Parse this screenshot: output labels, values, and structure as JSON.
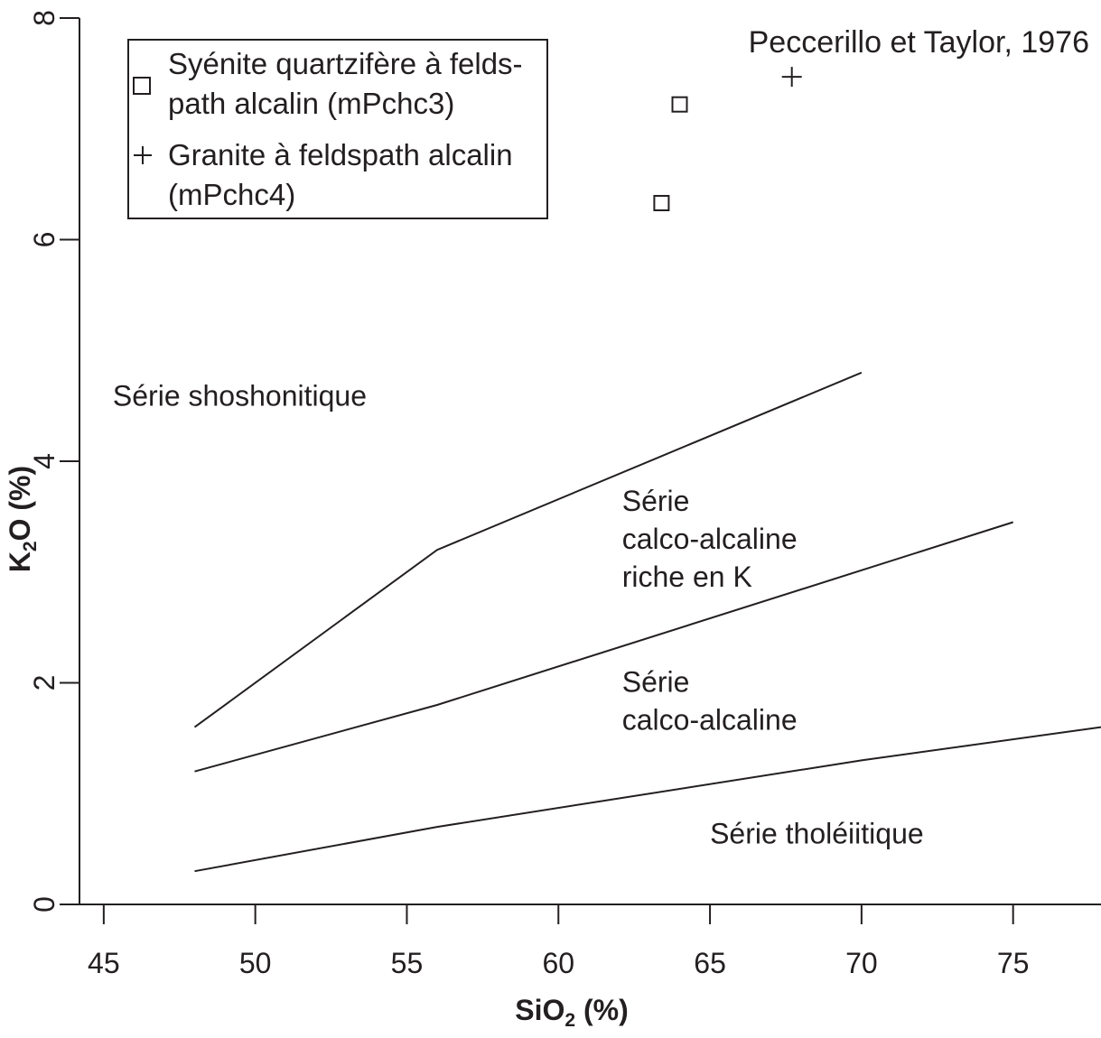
{
  "chart_data": {
    "type": "scatter",
    "xlabel_main": "SiO",
    "xlabel_sub": "2",
    "xlabel_tail": " (%)",
    "ylabel_main": "K",
    "ylabel_sub": "2",
    "ylabel_tail": "O (%)",
    "xlim": [
      44.2,
      77.9
    ],
    "ylim": [
      0,
      8
    ],
    "x_ticks": [
      45,
      50,
      55,
      60,
      65,
      70,
      75
    ],
    "y_ticks": [
      0,
      2,
      4,
      6,
      8
    ],
    "source": "Peccerillo et Taylor, 1976",
    "legend": {
      "position": "top-left",
      "entries": [
        {
          "symbol": "square",
          "lines": [
            "Syénite quartzifère à felds-",
            "path alcalin (mPchc3)"
          ]
        },
        {
          "symbol": "plus",
          "lines": [
            "Granite à feldspath alcalin",
            "(mPchc4)"
          ]
        }
      ]
    },
    "series": [
      {
        "name": "Syénite quartzifère à feldspath alcalin (mPchc3)",
        "marker": "square",
        "points": [
          [
            64.0,
            7.22
          ],
          [
            63.4,
            6.33
          ]
        ]
      },
      {
        "name": "Granite à feldspath alcalin (mPchc4)",
        "marker": "plus",
        "points": [
          [
            67.7,
            7.47
          ]
        ]
      }
    ],
    "boundaries": [
      {
        "points": [
          [
            48,
            1.6
          ],
          [
            56,
            3.2
          ],
          [
            70,
            4.8
          ]
        ]
      },
      {
        "points": [
          [
            48,
            1.2
          ],
          [
            56,
            1.8
          ],
          [
            75,
            3.45
          ]
        ]
      },
      {
        "points": [
          [
            48,
            0.3
          ],
          [
            56,
            0.7
          ],
          [
            70,
            1.3
          ],
          [
            77.9,
            1.6
          ]
        ]
      }
    ],
    "regions": [
      {
        "lines": [
          "Série shoshonitique"
        ],
        "anchor": [
          45.3,
          4.5
        ]
      },
      {
        "lines": [
          "Série",
          "calco-alcaline",
          "riche en K"
        ],
        "anchor": [
          62.1,
          3.55
        ]
      },
      {
        "lines": [
          "Série",
          "calco-alcaline"
        ],
        "anchor": [
          62.1,
          1.92
        ]
      },
      {
        "lines": [
          "Série tholéiitique"
        ],
        "anchor": [
          65.0,
          0.55
        ]
      }
    ]
  }
}
